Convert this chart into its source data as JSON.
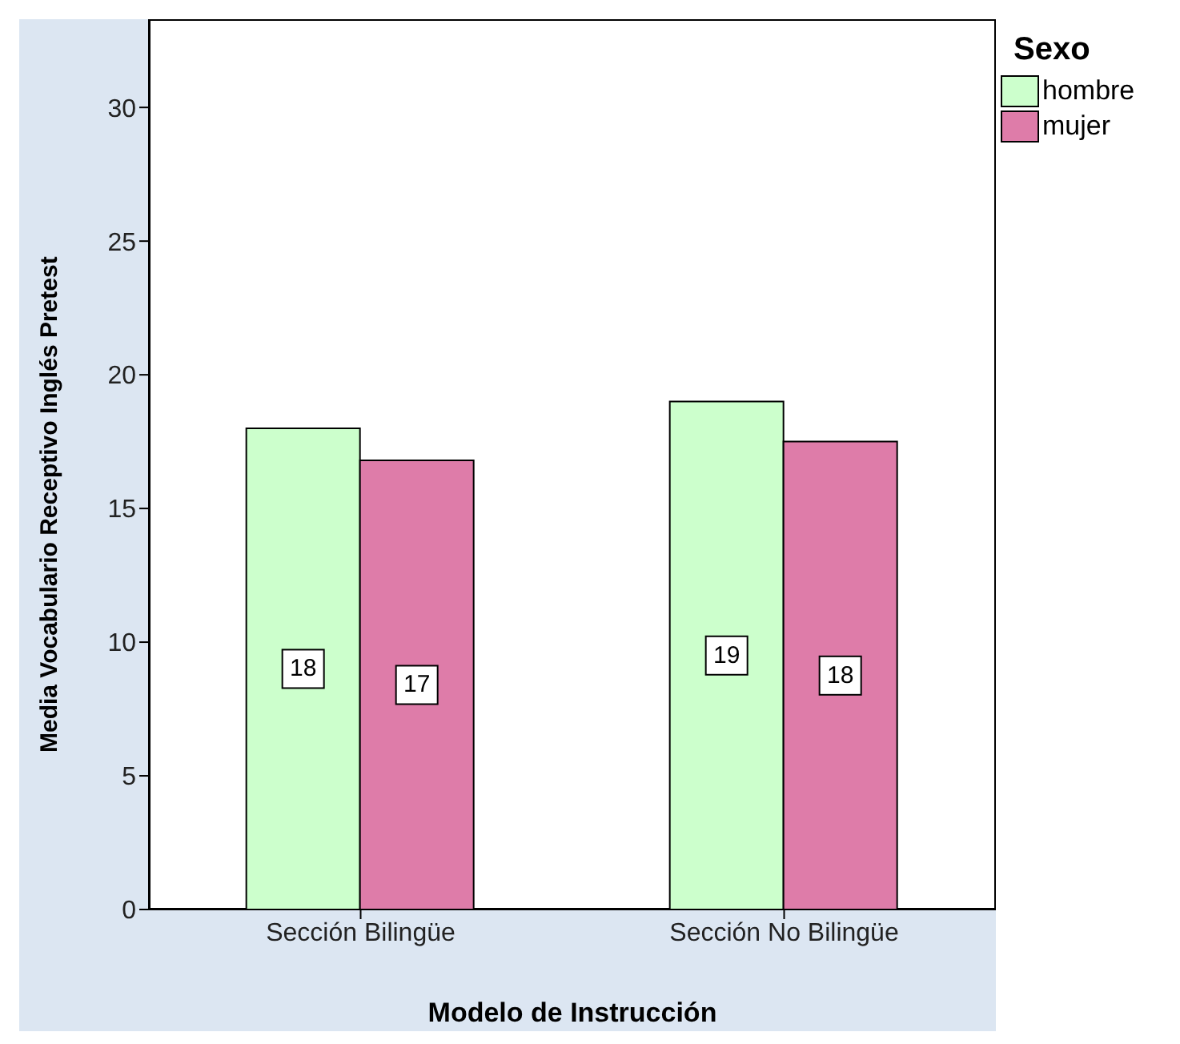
{
  "chart_data": {
    "type": "bar",
    "xlabel": "Modelo de Instrucción",
    "ylabel": "Media Vocabulario Receptivo Inglés Pretest",
    "legend_title": "Sexo",
    "categories": [
      "Sección Bilingüe",
      "Sección No Bilingüe"
    ],
    "series": [
      {
        "name": "hombre",
        "color": "#ccffcc",
        "values": [
          18.0,
          19.0
        ],
        "value_labels": [
          "18",
          "19"
        ]
      },
      {
        "name": "mujer",
        "color": "#de7ca9",
        "values": [
          16.8,
          17.5
        ],
        "value_labels": [
          "17",
          "18"
        ]
      }
    ],
    "ylim": [
      0,
      33.3
    ],
    "yticks": [
      0,
      5,
      10,
      15,
      20,
      25,
      30
    ],
    "legend": "top right"
  }
}
